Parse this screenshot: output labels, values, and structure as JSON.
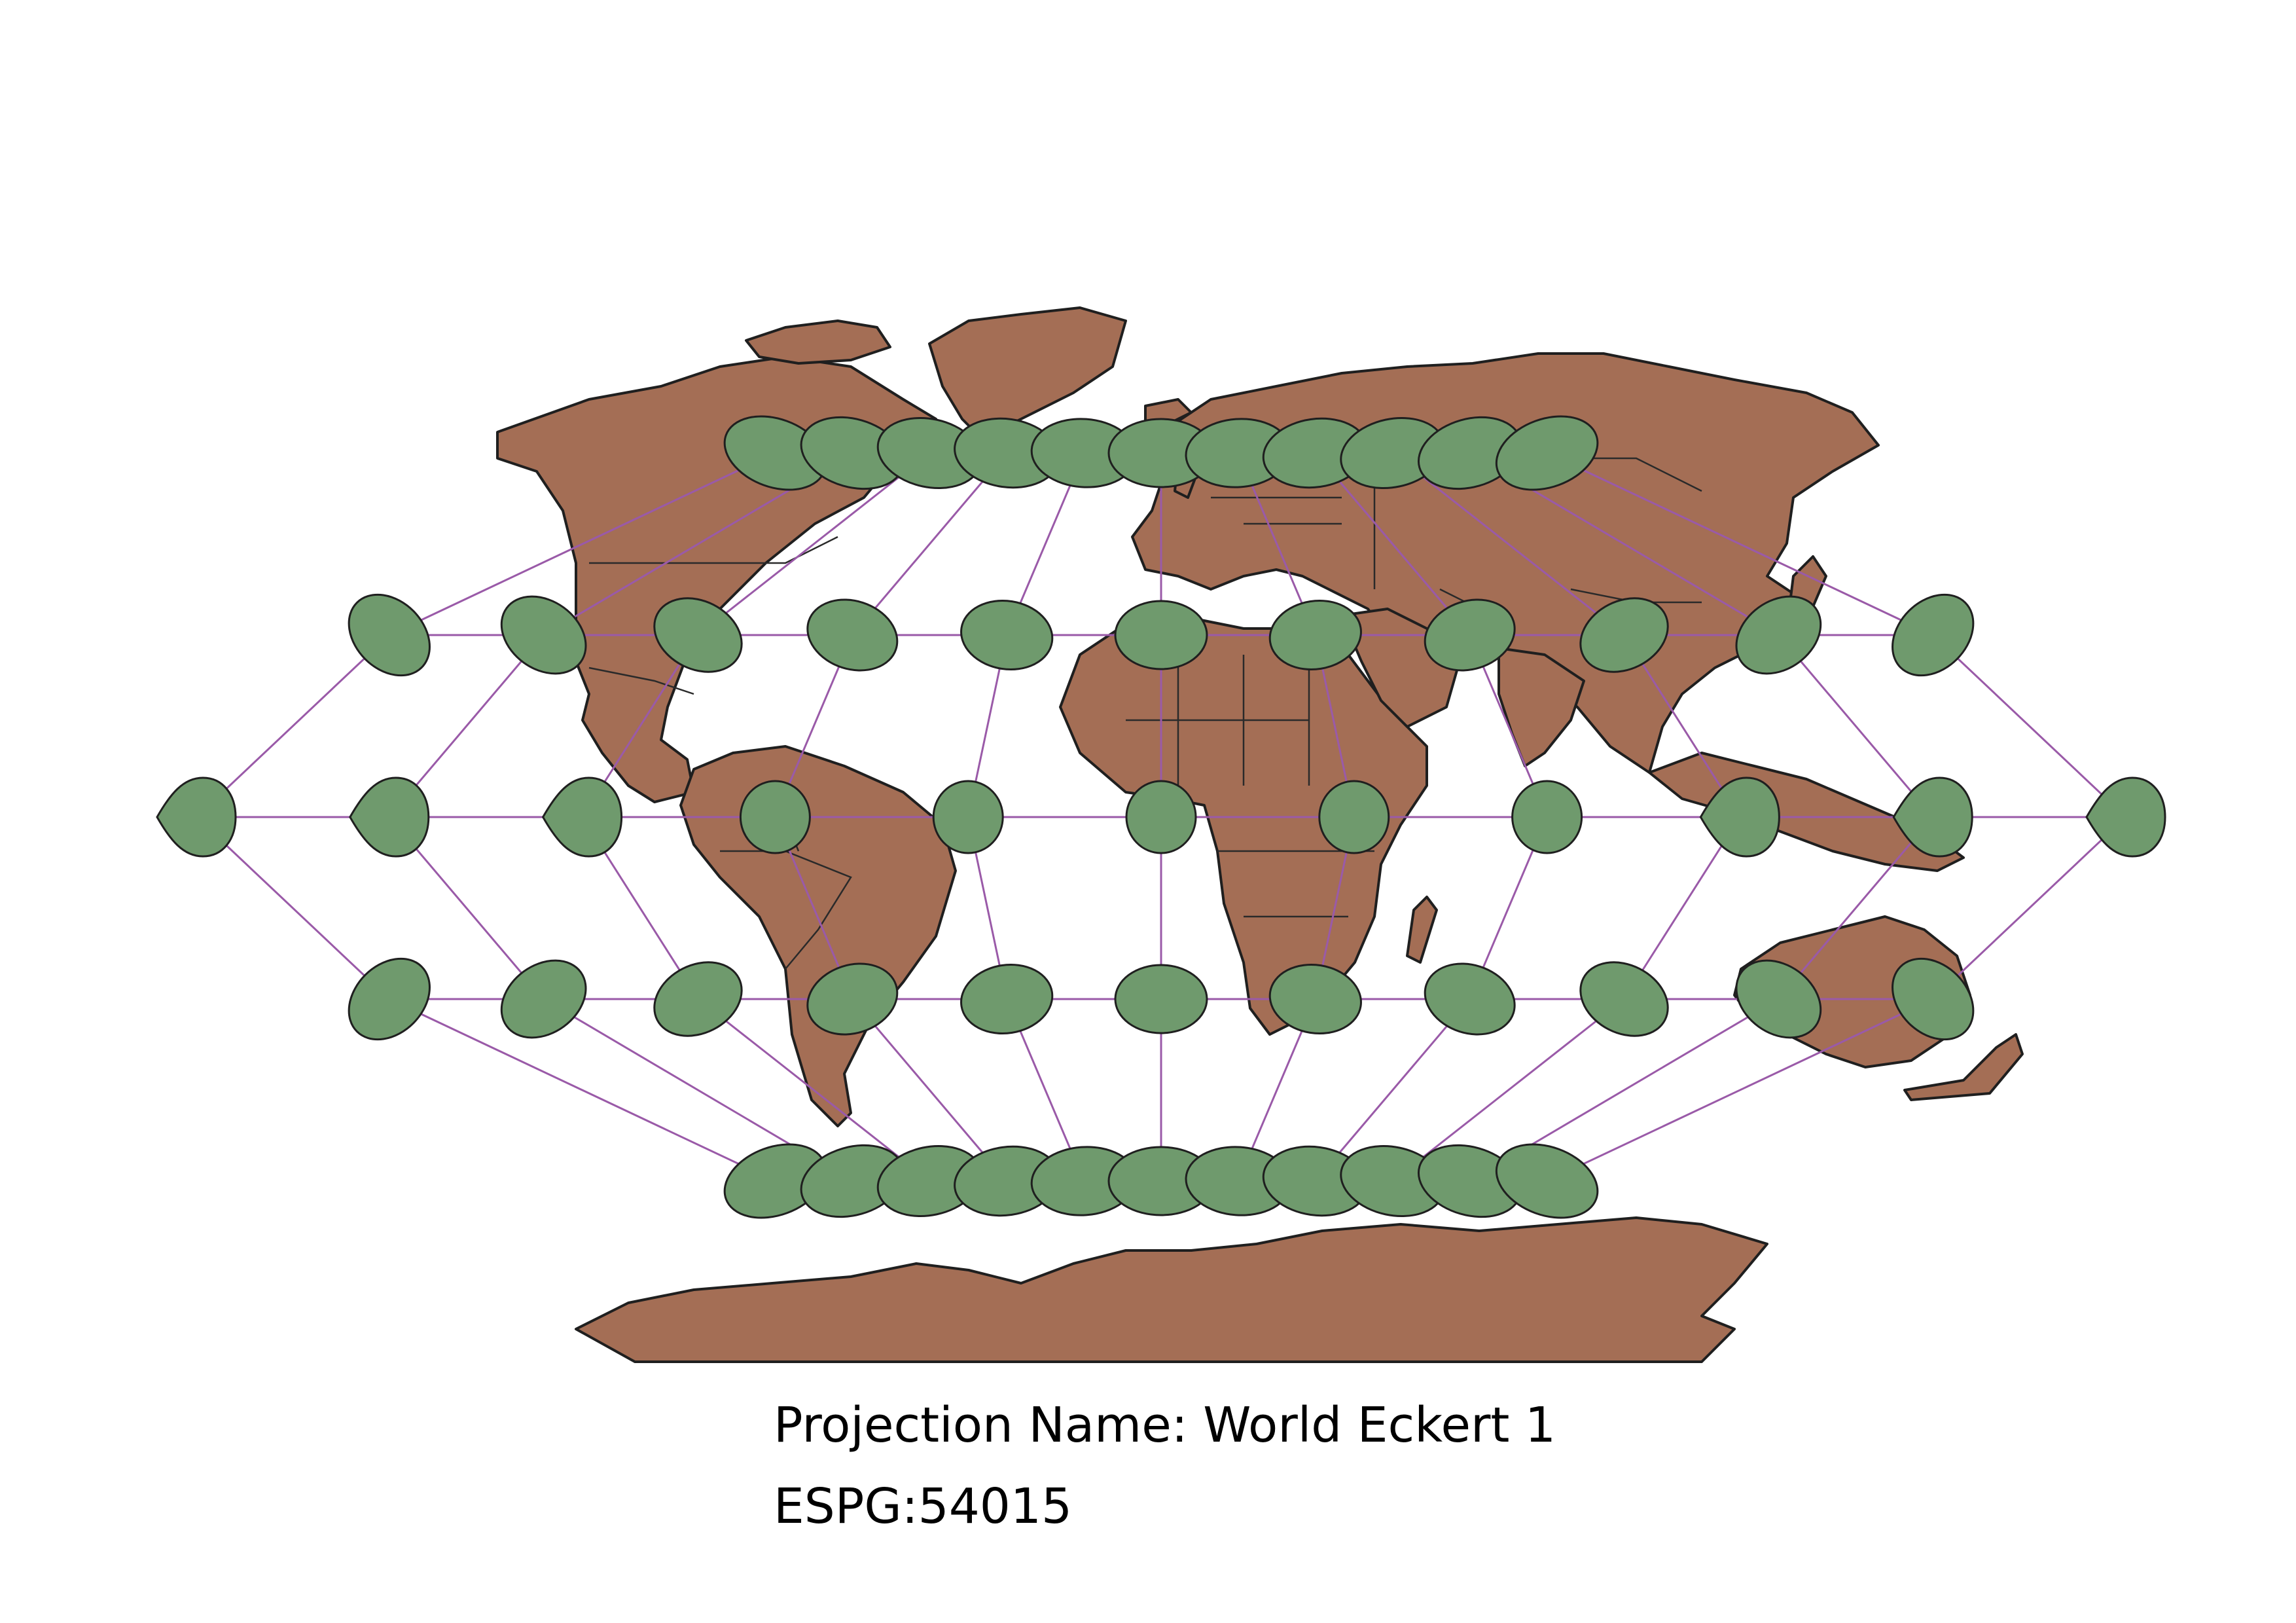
{
  "map": {
    "projection_label": "Projection Name: World Eckert 1",
    "epsg_label": "ESPG:54015",
    "colors": {
      "land": "#a46e55",
      "land_outline": "#1f1f1f",
      "graticule": "#9a5aa8",
      "indicatrix_fill": "#6f9a6d",
      "indicatrix_outline": "#1f1f1f",
      "background": "#ffffff"
    },
    "layers": [
      {
        "name": "Country boundaries"
      },
      {
        "name": "Graticule"
      },
      {
        "name": "Tissot's indicatrix"
      }
    ]
  }
}
